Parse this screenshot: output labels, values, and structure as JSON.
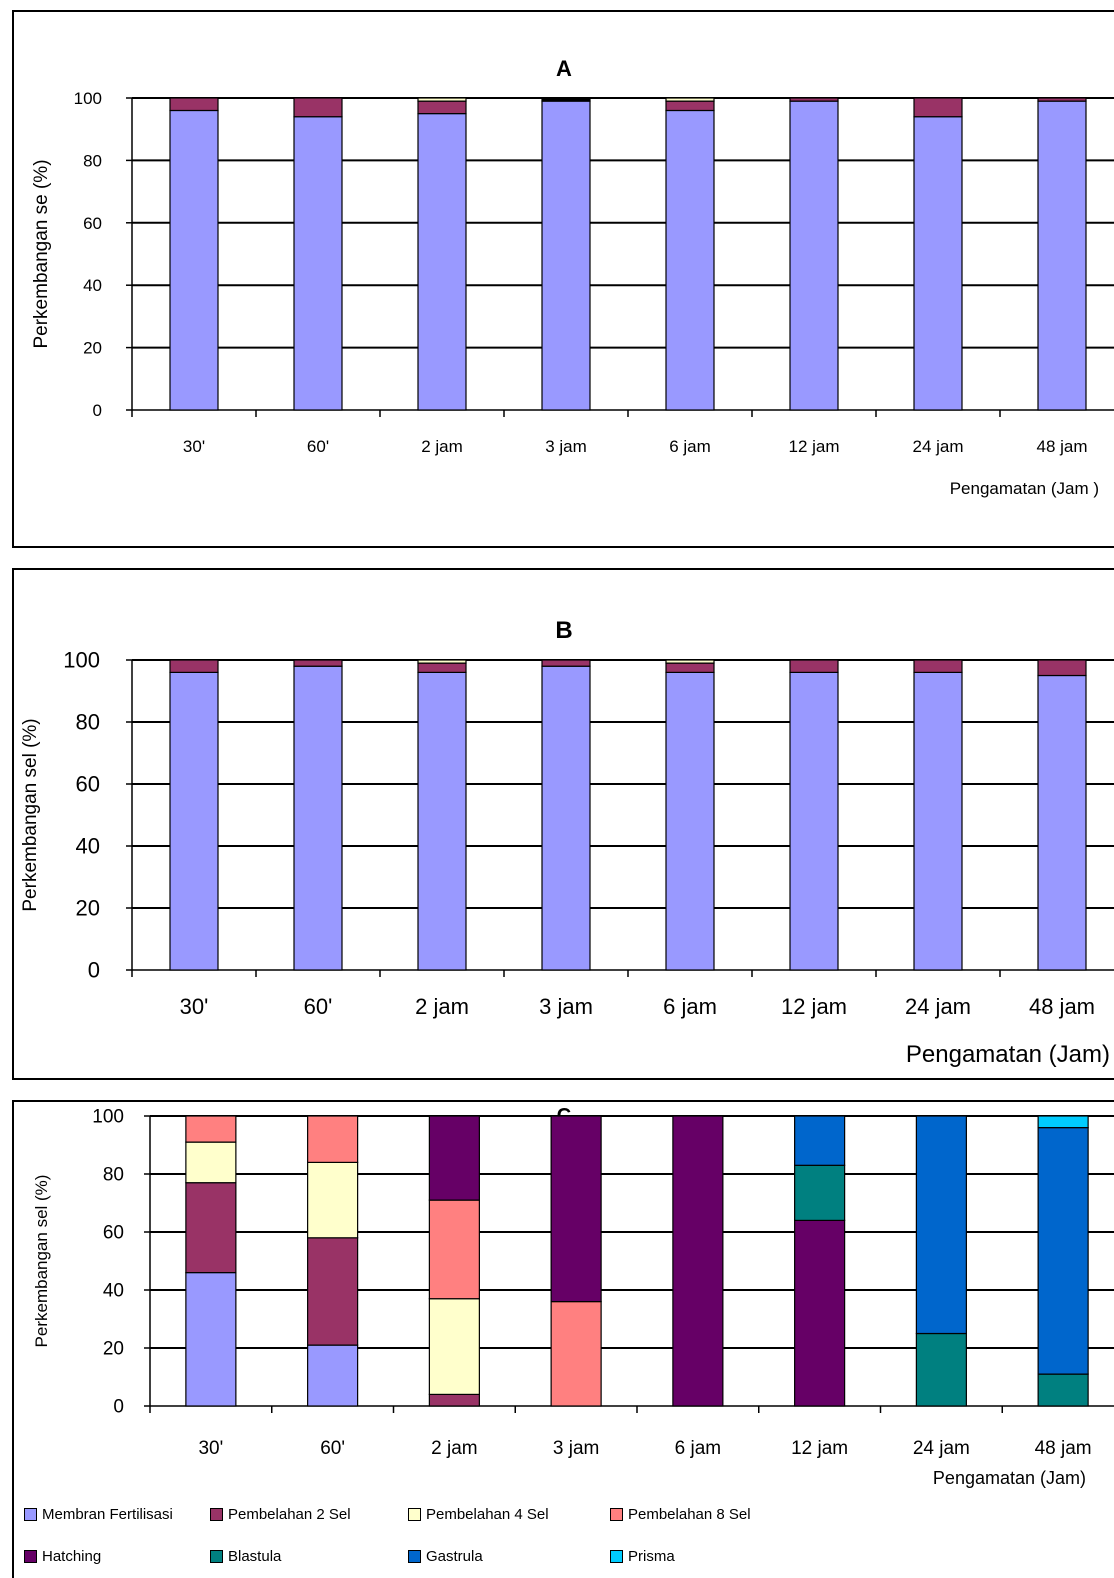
{
  "chart_data": [
    {
      "type": "bar",
      "stacked": true,
      "title": "A",
      "xlabel": "Pengamatan (Jam )",
      "ylabel": "Perkembangan se (%)",
      "ylim": [
        0,
        100
      ],
      "yticks": [
        "0",
        "20",
        "40",
        "60",
        "80",
        "100"
      ],
      "grid": true,
      "categories": [
        "30'",
        "60'",
        "2 jam",
        "3 jam",
        "6 jam",
        "12 jam",
        "24 jam",
        "48 jam"
      ],
      "series": [
        {
          "color": "#9999ff",
          "values": [
            96,
            94,
            95,
            99,
            96,
            99,
            94,
            99
          ]
        },
        {
          "color": "#993366",
          "values": [
            4,
            6,
            4,
            0,
            3,
            1,
            6,
            1
          ]
        },
        {
          "color": "#ffffcc",
          "values": [
            0,
            0,
            1,
            0,
            1,
            0,
            0,
            0
          ]
        },
        {
          "color": "#000000",
          "values": [
            0,
            0,
            0,
            1,
            0,
            0,
            0,
            0
          ]
        }
      ]
    },
    {
      "type": "bar",
      "stacked": true,
      "title": "B",
      "xlabel": "Pengamatan (Jam)",
      "ylabel": "Perkembangan sel (%)",
      "ylim": [
        0,
        100
      ],
      "yticks": [
        "0",
        "20",
        "40",
        "60",
        "80",
        "100"
      ],
      "grid": true,
      "categories": [
        "30'",
        "60'",
        "2 jam",
        "3 jam",
        "6 jam",
        "12 jam",
        "24 jam",
        "48 jam"
      ],
      "series": [
        {
          "color": "#9999ff",
          "values": [
            96,
            98,
            96,
            98,
            96,
            96,
            96,
            95
          ]
        },
        {
          "color": "#993366",
          "values": [
            4,
            2,
            3,
            2,
            3,
            4,
            4,
            5
          ]
        },
        {
          "color": "#ffffcc",
          "values": [
            0,
            0,
            1,
            0,
            1,
            0,
            0,
            0
          ]
        }
      ]
    },
    {
      "type": "bar",
      "stacked": true,
      "title": "C",
      "xlabel": "Pengamatan (Jam)",
      "ylabel": "Perkembangan sel (%)",
      "ylim": [
        0,
        100
      ],
      "yticks": [
        "0",
        "20",
        "40",
        "60",
        "80",
        "100"
      ],
      "grid": true,
      "legend_position": "bottom",
      "categories": [
        "30'",
        "60'",
        "2 jam",
        "3 jam",
        "6 jam",
        "12 jam",
        "24 jam",
        "48 jam"
      ],
      "series": [
        {
          "name": "Membran Fertilisasi",
          "color": "#9999ff",
          "values": [
            46,
            21,
            0,
            0,
            0,
            0,
            0,
            0
          ]
        },
        {
          "name": "Pembelahan 2 Sel",
          "color": "#993366",
          "values": [
            31,
            37,
            4,
            0,
            0,
            0,
            0,
            0
          ]
        },
        {
          "name": "Pembelahan 4 Sel",
          "color": "#ffffcc",
          "values": [
            14,
            26,
            33,
            0,
            0,
            0,
            0,
            0
          ]
        },
        {
          "name": "Pembelahan 8 Sel",
          "color": "#ff8080",
          "values": [
            9,
            16,
            34,
            36,
            0,
            0,
            0,
            0
          ]
        },
        {
          "name": "Hatching",
          "color": "#660066",
          "values": [
            0,
            0,
            29,
            64,
            100,
            64,
            0,
            0
          ]
        },
        {
          "name": "Blastula",
          "color": "#008080",
          "values": [
            0,
            0,
            0,
            0,
            0,
            19,
            25,
            11
          ]
        },
        {
          "name": "Gastrula",
          "color": "#0066cc",
          "values": [
            0,
            0,
            0,
            0,
            0,
            17,
            75,
            85
          ]
        },
        {
          "name": "Prisma",
          "color": "#00ccff",
          "values": [
            0,
            0,
            0,
            0,
            0,
            0,
            0,
            4
          ]
        }
      ]
    }
  ]
}
